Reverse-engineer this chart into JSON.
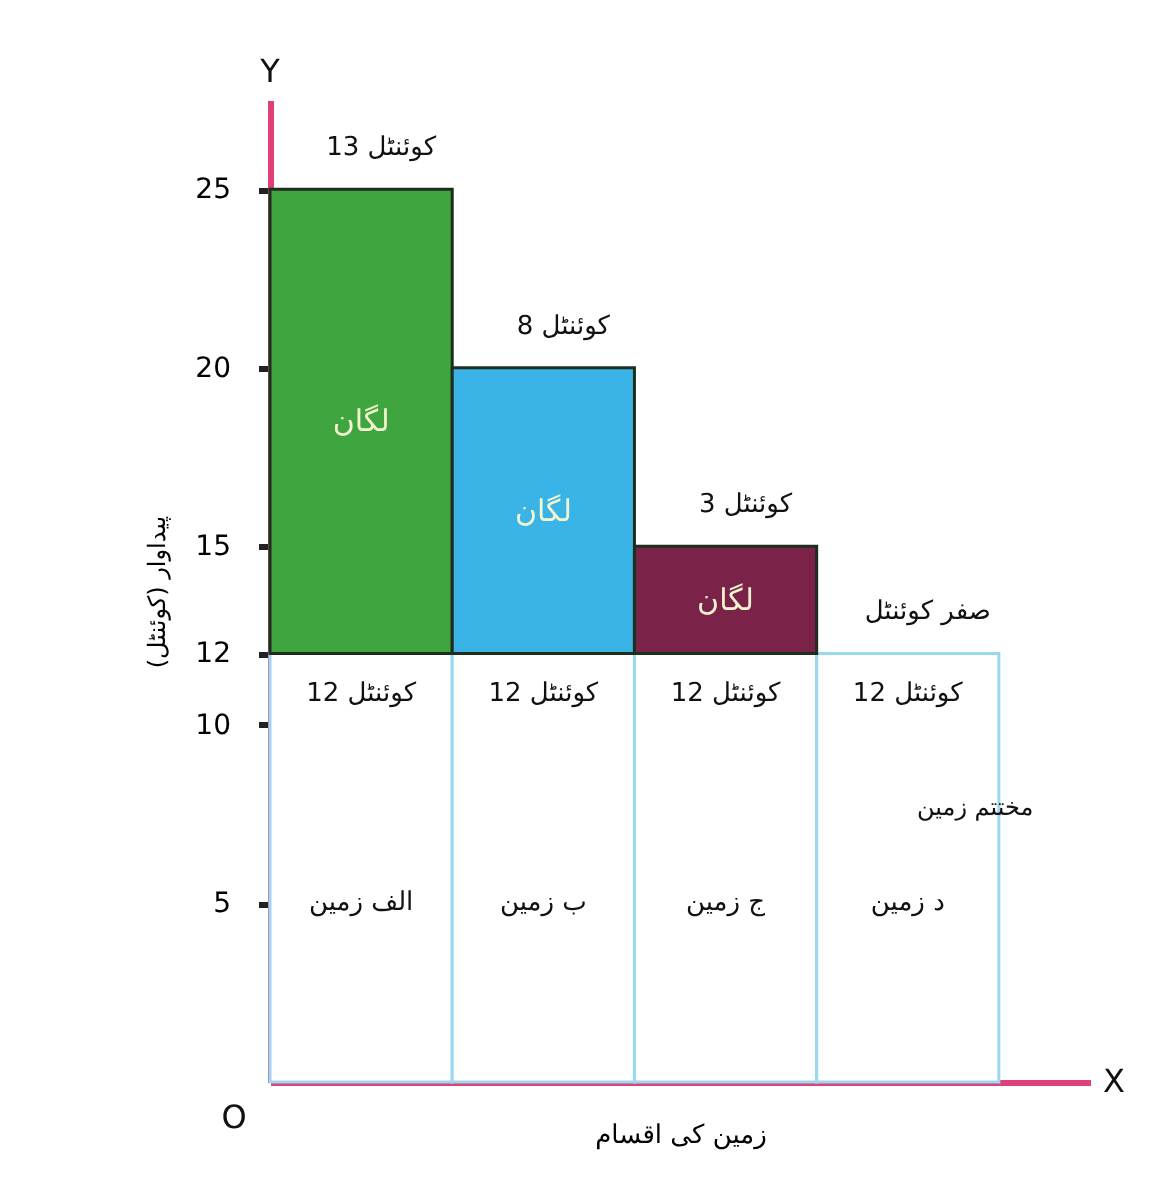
{
  "chart_data": {
    "type": "bar",
    "stacked": true,
    "xlabel": "زمین کی اقسام",
    "ylabel": "پیداوار (کوئنٹل)",
    "categories": [
      "الف زمین",
      "ب زمین",
      "ج زمین",
      "د زمین"
    ],
    "series": [
      {
        "color": "#9ad8f0",
        "values": [
          12,
          12,
          12,
          12
        ],
        "value_labels": [
          "12 کوئنٹل",
          "12 کوئنٹل",
          "12 کوئنٹل",
          "12 کوئنٹل"
        ]
      },
      {
        "name": "لگان",
        "colors": [
          "#3fa63f",
          "#3ab4e6",
          "#7b2248",
          null
        ],
        "values": [
          13,
          8,
          3,
          0
        ],
        "value_labels": [
          "13 کوئنٹل",
          "8 کوئنٹل",
          "3 کوئنٹل",
          "صفر کوئنٹل"
        ]
      }
    ],
    "ylim": [
      0,
      27.5
    ],
    "yticks": [
      5,
      10,
      12,
      15,
      20,
      25
    ],
    "grid": false,
    "tick_labels": "y",
    "annotations": [
      "Y",
      "X",
      "O",
      "مختتم زمین"
    ]
  }
}
